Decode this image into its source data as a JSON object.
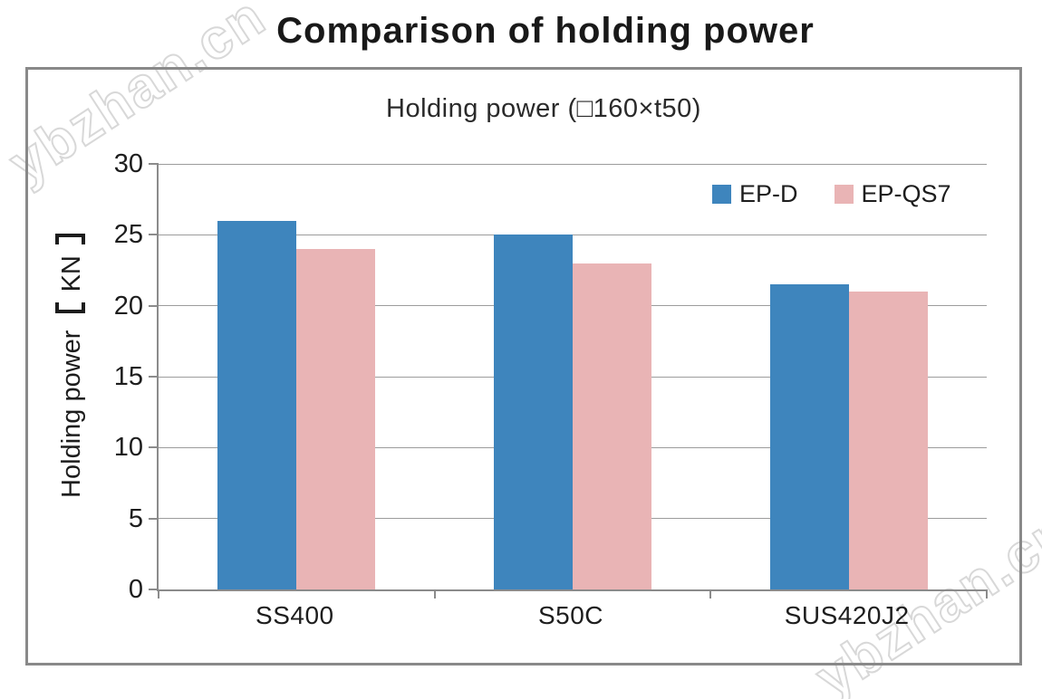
{
  "header": {
    "title": "Comparison of holding power"
  },
  "watermark": {
    "text": "ybzhan.cn"
  },
  "chart": {
    "title": "Holding power (□160×t50)",
    "ylabel_text": "Holding power",
    "ylabel_unit": "KN"
  },
  "colors": {
    "series_ep_d": "#3E85BD",
    "series_ep_qs7": "#E9B4B5",
    "axis": "#8B8B8B",
    "grid": "#9C9C9C",
    "frame_border": "#898989",
    "text": "#1D1D1D",
    "watermark_stroke": "#D8D8D8"
  },
  "chart_data": {
    "type": "bar",
    "title": "Holding power (□160×t50)",
    "categories": [
      "SS400",
      "S50C",
      "SUS420J2"
    ],
    "series": [
      {
        "name": "EP-D",
        "color": "#3E85BD",
        "values": [
          26,
          25,
          21.5
        ]
      },
      {
        "name": "EP-QS7",
        "color": "#E9B4B5",
        "values": [
          24,
          23,
          21
        ]
      }
    ],
    "xlabel": "",
    "ylabel": "Holding power 【KN】",
    "ylim": [
      0,
      30
    ],
    "yticks": [
      0,
      5,
      10,
      15,
      20,
      25,
      30
    ],
    "grid": true,
    "legend_position": "top-right-inside"
  }
}
